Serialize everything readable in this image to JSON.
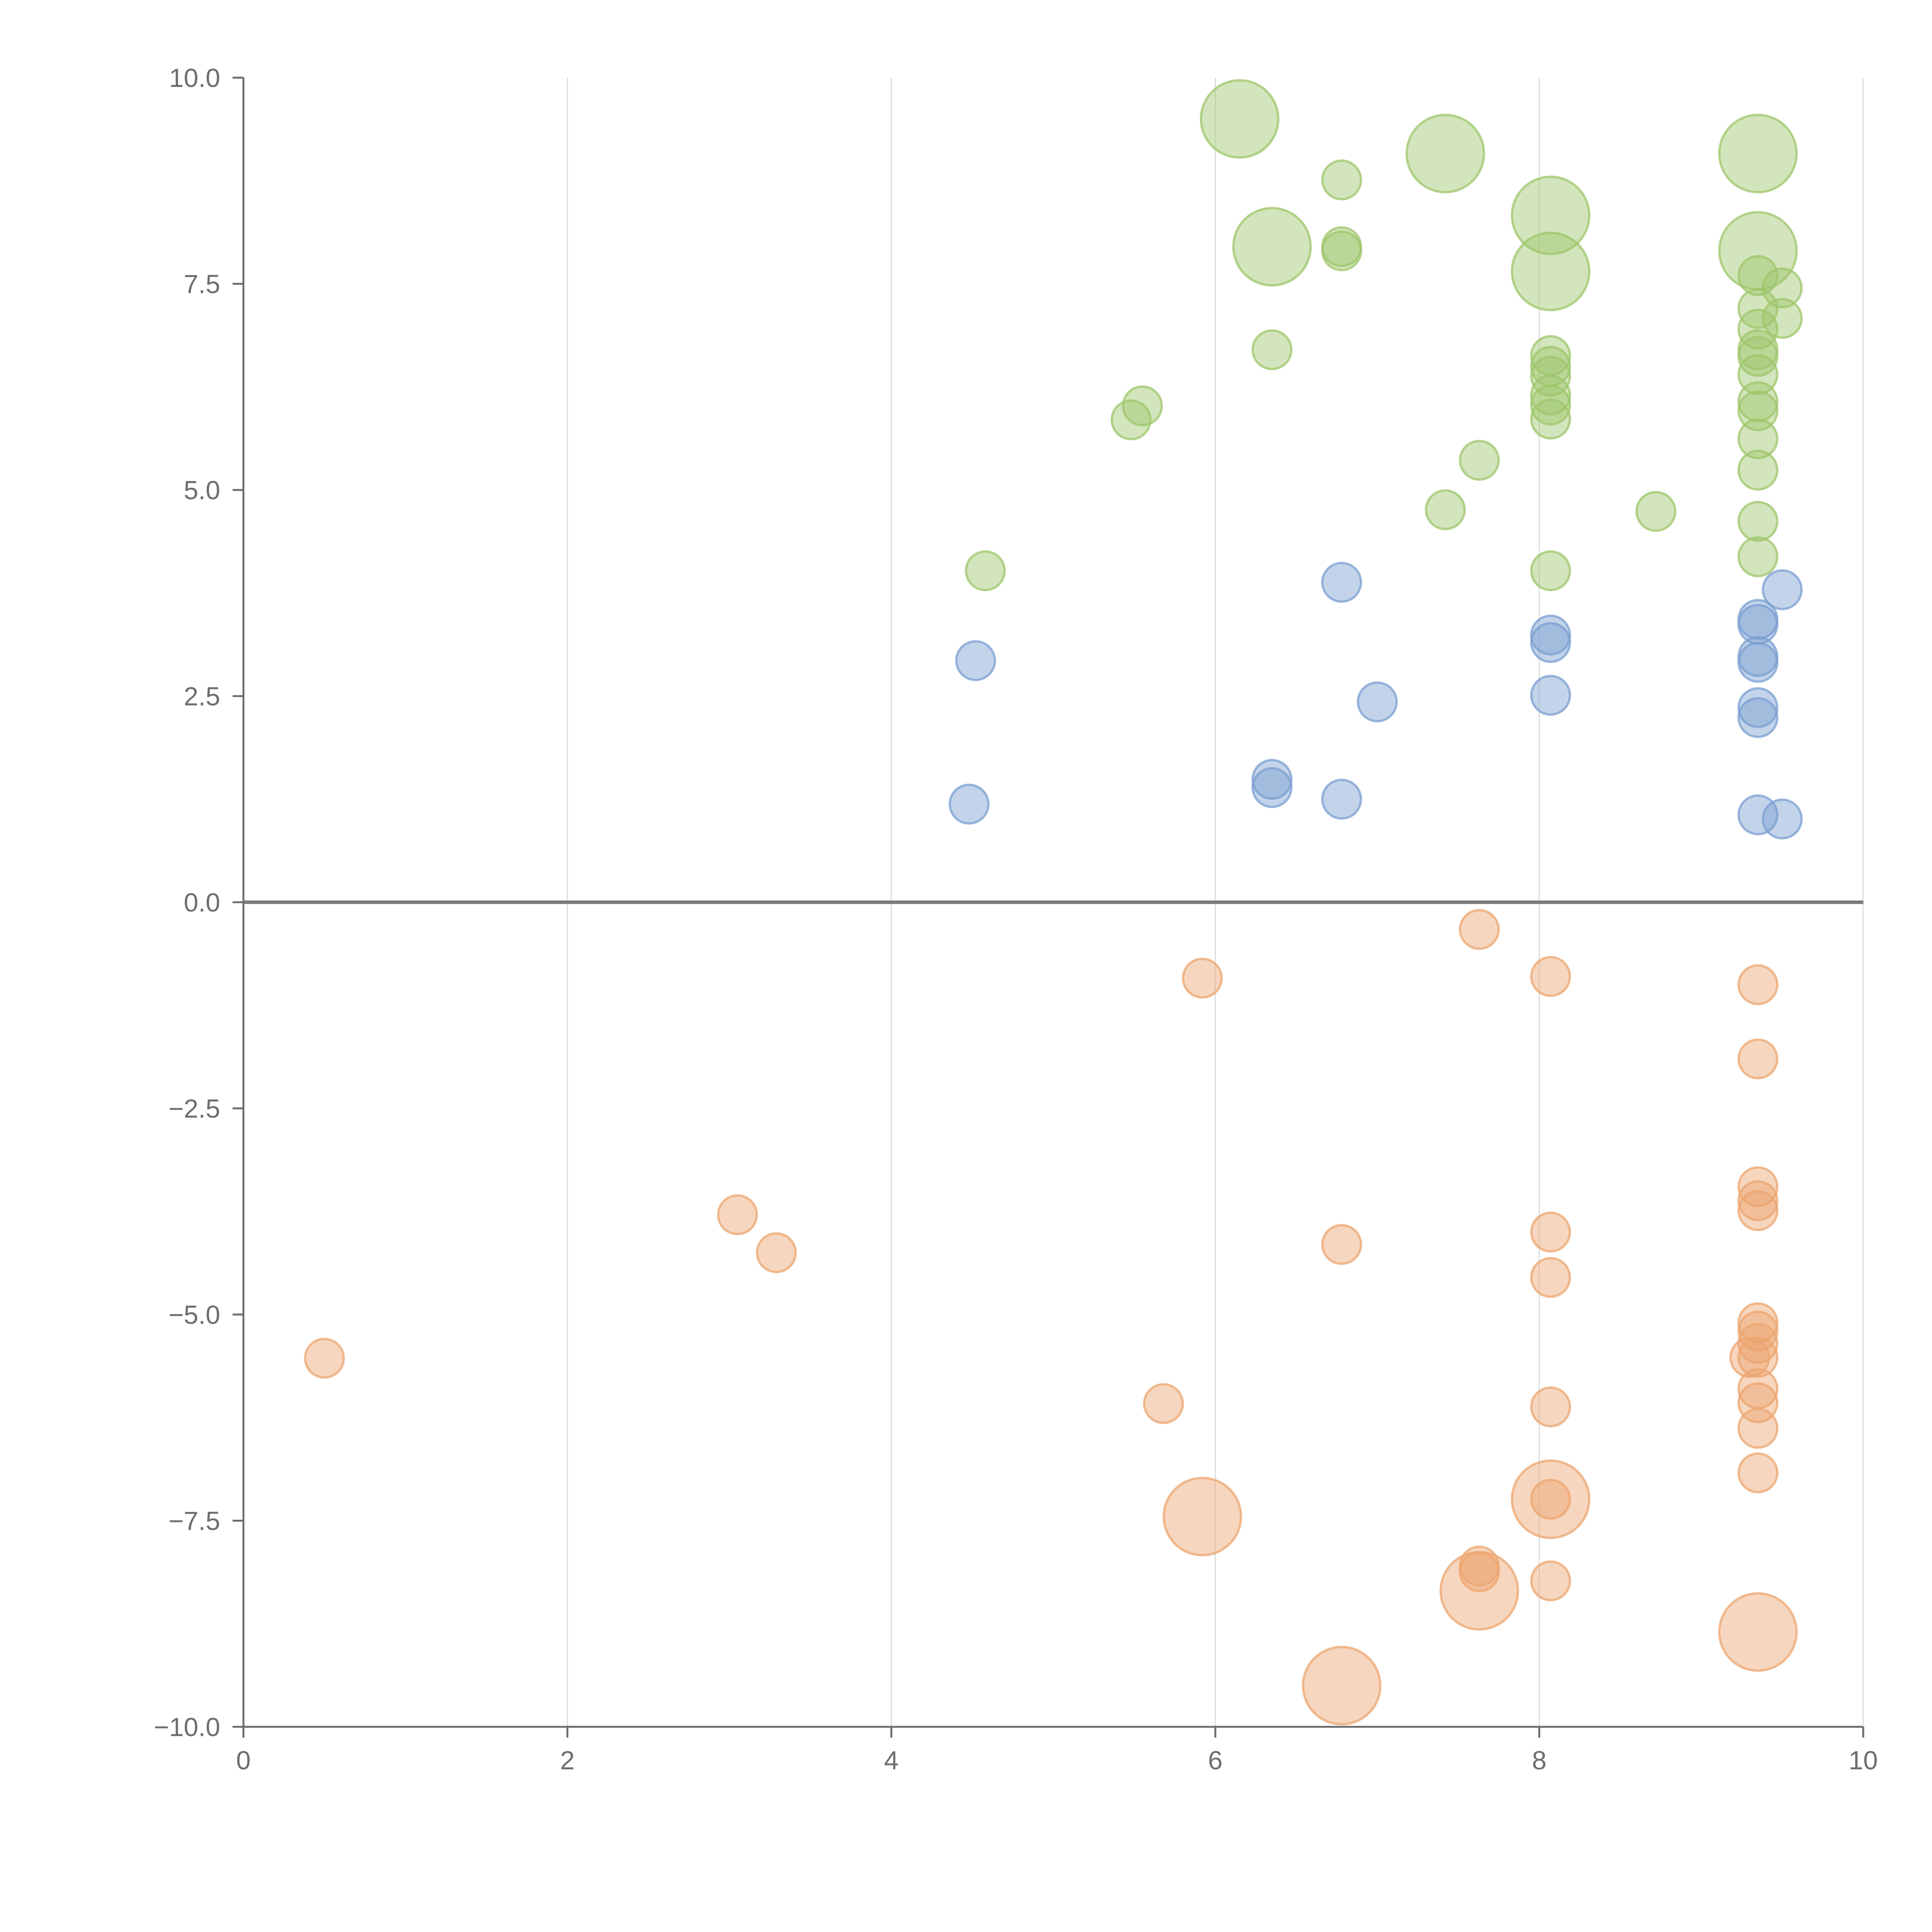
{
  "chart_data": {
    "type": "scatter",
    "title": "",
    "xlabel": "",
    "ylabel": "",
    "xlim": [
      0,
      10
    ],
    "ylim": [
      -10,
      10
    ],
    "x_ticks": [
      0,
      2,
      4,
      6,
      8,
      10
    ],
    "x_tick_labels": [
      "0",
      "2",
      "4",
      "6",
      "8",
      "10"
    ],
    "y_ticks": [
      10,
      7.5,
      5,
      2.5,
      0,
      -2.5,
      -5,
      -7.5,
      -10
    ],
    "y_tick_labels": [
      "10.0",
      "7.5",
      "5.0",
      "2.5",
      "0.0",
      "−2.5",
      "−5.0",
      "−7.5",
      "−10.0"
    ],
    "vertical_grid": true,
    "horizontal_grid": false,
    "zero_line": true,
    "series": [
      {
        "name": "green",
        "color": "#9dc56b",
        "points": [
          {
            "x": 6.15,
            "y": 9.5,
            "size": 3
          },
          {
            "x": 6.35,
            "y": 7.95,
            "size": 3
          },
          {
            "x": 7.42,
            "y": 9.08,
            "size": 3
          },
          {
            "x": 8.07,
            "y": 8.33,
            "size": 3
          },
          {
            "x": 8.07,
            "y": 7.65,
            "size": 3
          },
          {
            "x": 9.35,
            "y": 9.08,
            "size": 3
          },
          {
            "x": 9.35,
            "y": 7.9,
            "size": 3
          },
          {
            "x": 6.78,
            "y": 8.76,
            "size": 1
          },
          {
            "x": 6.78,
            "y": 7.95,
            "size": 1
          },
          {
            "x": 6.78,
            "y": 7.9,
            "size": 1
          },
          {
            "x": 6.35,
            "y": 6.7,
            "size": 1
          },
          {
            "x": 5.55,
            "y": 6.02,
            "size": 1
          },
          {
            "x": 5.48,
            "y": 5.85,
            "size": 1
          },
          {
            "x": 4.58,
            "y": 4.02,
            "size": 1
          },
          {
            "x": 7.42,
            "y": 4.76,
            "size": 1
          },
          {
            "x": 7.63,
            "y": 5.36,
            "size": 1
          },
          {
            "x": 8.72,
            "y": 4.74,
            "size": 1
          },
          {
            "x": 8.07,
            "y": 6.63,
            "size": 1
          },
          {
            "x": 8.07,
            "y": 6.5,
            "size": 1
          },
          {
            "x": 8.07,
            "y": 6.38,
            "size": 1
          },
          {
            "x": 8.07,
            "y": 6.15,
            "size": 1
          },
          {
            "x": 8.07,
            "y": 6.03,
            "size": 1
          },
          {
            "x": 8.07,
            "y": 5.86,
            "size": 1
          },
          {
            "x": 8.07,
            "y": 4.02,
            "size": 1
          },
          {
            "x": 9.35,
            "y": 7.6,
            "size": 1
          },
          {
            "x": 9.5,
            "y": 7.45,
            "size": 1
          },
          {
            "x": 9.35,
            "y": 7.2,
            "size": 1
          },
          {
            "x": 9.5,
            "y": 7.08,
            "size": 1
          },
          {
            "x": 9.35,
            "y": 6.95,
            "size": 1
          },
          {
            "x": 9.35,
            "y": 6.7,
            "size": 1
          },
          {
            "x": 9.35,
            "y": 6.62,
            "size": 1
          },
          {
            "x": 9.35,
            "y": 6.4,
            "size": 1
          },
          {
            "x": 9.35,
            "y": 6.07,
            "size": 1
          },
          {
            "x": 9.35,
            "y": 5.96,
            "size": 1
          },
          {
            "x": 9.35,
            "y": 5.62,
            "size": 1
          },
          {
            "x": 9.35,
            "y": 5.24,
            "size": 1
          },
          {
            "x": 9.35,
            "y": 4.62,
            "size": 1
          },
          {
            "x": 9.35,
            "y": 4.19,
            "size": 1
          }
        ]
      },
      {
        "name": "blue",
        "color": "#7b9fd1",
        "points": [
          {
            "x": 6.78,
            "y": 3.88,
            "size": 1
          },
          {
            "x": 4.52,
            "y": 2.93,
            "size": 1
          },
          {
            "x": 4.48,
            "y": 1.19,
            "size": 1
          },
          {
            "x": 7.0,
            "y": 2.43,
            "size": 1
          },
          {
            "x": 6.35,
            "y": 1.49,
            "size": 1
          },
          {
            "x": 6.35,
            "y": 1.39,
            "size": 1
          },
          {
            "x": 6.78,
            "y": 1.25,
            "size": 1
          },
          {
            "x": 8.07,
            "y": 3.24,
            "size": 1
          },
          {
            "x": 8.07,
            "y": 3.15,
            "size": 1
          },
          {
            "x": 8.07,
            "y": 2.51,
            "size": 1
          },
          {
            "x": 9.5,
            "y": 3.79,
            "size": 1
          },
          {
            "x": 9.35,
            "y": 3.43,
            "size": 1
          },
          {
            "x": 9.35,
            "y": 3.37,
            "size": 1
          },
          {
            "x": 9.35,
            "y": 2.98,
            "size": 1
          },
          {
            "x": 9.35,
            "y": 2.91,
            "size": 1
          },
          {
            "x": 9.35,
            "y": 2.36,
            "size": 1
          },
          {
            "x": 9.35,
            "y": 2.24,
            "size": 1
          },
          {
            "x": 9.35,
            "y": 1.06,
            "size": 1
          },
          {
            "x": 9.5,
            "y": 1.01,
            "size": 1
          }
        ]
      },
      {
        "name": "orange",
        "color": "#eca56f",
        "points": [
          {
            "x": 5.92,
            "y": -7.45,
            "size": 3
          },
          {
            "x": 8.07,
            "y": -7.24,
            "size": 3
          },
          {
            "x": 7.63,
            "y": -8.35,
            "size": 3
          },
          {
            "x": 9.35,
            "y": -8.85,
            "size": 3
          },
          {
            "x": 6.78,
            "y": -9.5,
            "size": 3
          },
          {
            "x": 7.63,
            "y": -0.33,
            "size": 1
          },
          {
            "x": 5.92,
            "y": -0.92,
            "size": 1
          },
          {
            "x": 8.07,
            "y": -0.9,
            "size": 1
          },
          {
            "x": 9.35,
            "y": -1.0,
            "size": 1
          },
          {
            "x": 9.35,
            "y": -1.9,
            "size": 1
          },
          {
            "x": 3.05,
            "y": -3.79,
            "size": 1
          },
          {
            "x": 3.29,
            "y": -4.25,
            "size": 1
          },
          {
            "x": 0.5,
            "y": -5.53,
            "size": 1
          },
          {
            "x": 6.78,
            "y": -4.15,
            "size": 1
          },
          {
            "x": 8.07,
            "y": -4.0,
            "size": 1
          },
          {
            "x": 8.07,
            "y": -4.55,
            "size": 1
          },
          {
            "x": 5.68,
            "y": -6.08,
            "size": 1
          },
          {
            "x": 8.07,
            "y": -6.12,
            "size": 1
          },
          {
            "x": 8.07,
            "y": -7.24,
            "size": 1
          },
          {
            "x": 7.63,
            "y": -8.05,
            "size": 1
          },
          {
            "x": 7.63,
            "y": -8.12,
            "size": 1
          },
          {
            "x": 8.07,
            "y": -8.23,
            "size": 1
          },
          {
            "x": 9.35,
            "y": -3.45,
            "size": 1
          },
          {
            "x": 9.35,
            "y": -3.62,
            "size": 1
          },
          {
            "x": 9.35,
            "y": -3.74,
            "size": 1
          },
          {
            "x": 9.35,
            "y": -5.1,
            "size": 1
          },
          {
            "x": 9.35,
            "y": -5.2,
            "size": 1
          },
          {
            "x": 9.35,
            "y": -5.35,
            "size": 1
          },
          {
            "x": 9.35,
            "y": -5.52,
            "size": 1
          },
          {
            "x": 9.3,
            "y": -5.52,
            "size": 1
          },
          {
            "x": 9.35,
            "y": -5.9,
            "size": 1
          },
          {
            "x": 9.35,
            "y": -6.07,
            "size": 1
          },
          {
            "x": 9.35,
            "y": -6.38,
            "size": 1
          },
          {
            "x": 9.35,
            "y": -6.92,
            "size": 1
          }
        ]
      }
    ]
  }
}
